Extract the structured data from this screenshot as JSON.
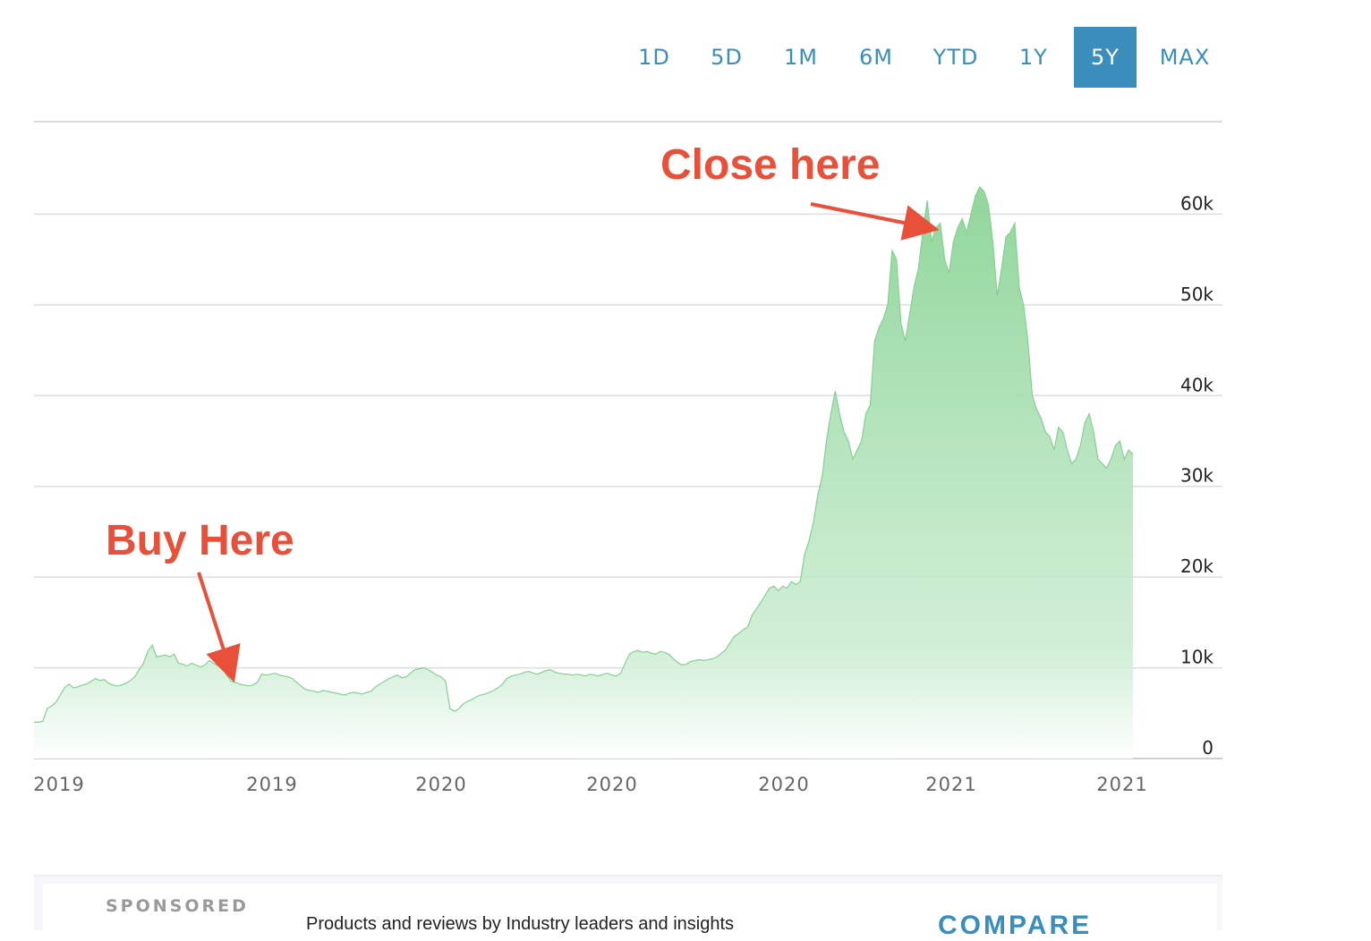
{
  "range_selector": {
    "options": [
      "1D",
      "5D",
      "1M",
      "6M",
      "YTD",
      "1Y",
      "5Y",
      "MAX"
    ],
    "active": "5Y"
  },
  "chart_data": {
    "type": "area",
    "x_tick_labels": [
      "2019",
      "2019",
      "2020",
      "2020",
      "2020",
      "2021",
      "2021"
    ],
    "y_tick_labels": [
      "0",
      "10k",
      "20k",
      "30k",
      "40k",
      "50k",
      "60k"
    ],
    "ylim": [
      0,
      70000
    ],
    "grid": true,
    "y_axis_position": "right",
    "fill_color": "#8fd69a",
    "annotation_color": "#e8503a",
    "annotations": [
      {
        "text": "Buy Here",
        "points_to_index": 45
      },
      {
        "text": "Close here",
        "points_to_index": 206
      }
    ],
    "values": [
      4000,
      4000,
      4100,
      5500,
      5800,
      6200,
      7000,
      7800,
      8200,
      7800,
      7900,
      8100,
      8200,
      8500,
      8800,
      8600,
      8700,
      8300,
      8100,
      8000,
      8100,
      8300,
      8600,
      9000,
      9800,
      10500,
      11800,
      12500,
      11200,
      11300,
      11400,
      11200,
      11500,
      10500,
      10400,
      10200,
      10500,
      10300,
      10100,
      10300,
      10800,
      10500,
      10200,
      10000,
      9200,
      8500,
      8400,
      8200,
      8100,
      8000,
      8100,
      8400,
      9300,
      9200,
      9300,
      9400,
      9200,
      9100,
      9000,
      8800,
      8400,
      8000,
      7600,
      7500,
      7400,
      7300,
      7500,
      7400,
      7300,
      7200,
      7100,
      7000,
      7200,
      7300,
      7200,
      7100,
      7300,
      7400,
      7900,
      8200,
      8500,
      8800,
      9000,
      9200,
      8900,
      9000,
      9400,
      9800,
      9900,
      10000,
      9800,
      9500,
      9200,
      9000,
      8500,
      5500,
      5200,
      5500,
      6000,
      6300,
      6500,
      6800,
      7000,
      7100,
      7300,
      7500,
      7800,
      8200,
      8800,
      9100,
      9200,
      9300,
      9500,
      9600,
      9400,
      9300,
      9500,
      9700,
      9800,
      9500,
      9400,
      9300,
      9300,
      9200,
      9300,
      9200,
      9100,
      9300,
      9200,
      9100,
      9300,
      9400,
      9200,
      9100,
      9400,
      10500,
      11500,
      11800,
      11900,
      11700,
      11800,
      11600,
      11500,
      11800,
      11700,
      11500,
      11000,
      10600,
      10300,
      10400,
      10700,
      10800,
      10900,
      10800,
      10900,
      11000,
      11200,
      11600,
      12000,
      12800,
      13500,
      13800,
      14200,
      14500,
      15800,
      16500,
      17200,
      18000,
      18800,
      19000,
      18500,
      19000,
      18800,
      19500,
      19200,
      19500,
      22500,
      24000,
      26000,
      29000,
      31000,
      35000,
      38000,
      40500,
      38000,
      36000,
      35000,
      33000,
      34000,
      35000,
      38000,
      39000,
      46000,
      47500,
      48500,
      50000,
      56000,
      55000,
      48000,
      46000,
      49000,
      52000,
      54000,
      58000,
      61500,
      57000,
      58500,
      59000,
      55000,
      53500,
      57000,
      58500,
      59500,
      58000,
      60000,
      62000,
      63000,
      62500,
      61000,
      57000,
      51000,
      54000,
      57500,
      58000,
      59000,
      52000,
      50000,
      46000,
      40000,
      38500,
      37500,
      36000,
      35500,
      34000,
      36500,
      36000,
      34000,
      32500,
      33000,
      34500,
      37000,
      38000,
      36000,
      33000,
      32500,
      32000,
      33000,
      34500,
      35000,
      33000,
      34000,
      33500
    ]
  },
  "sponsored": {
    "label": "SPONSORED",
    "text": "Products and reviews by Industry leaders and insights",
    "cta": "COMPARE"
  }
}
